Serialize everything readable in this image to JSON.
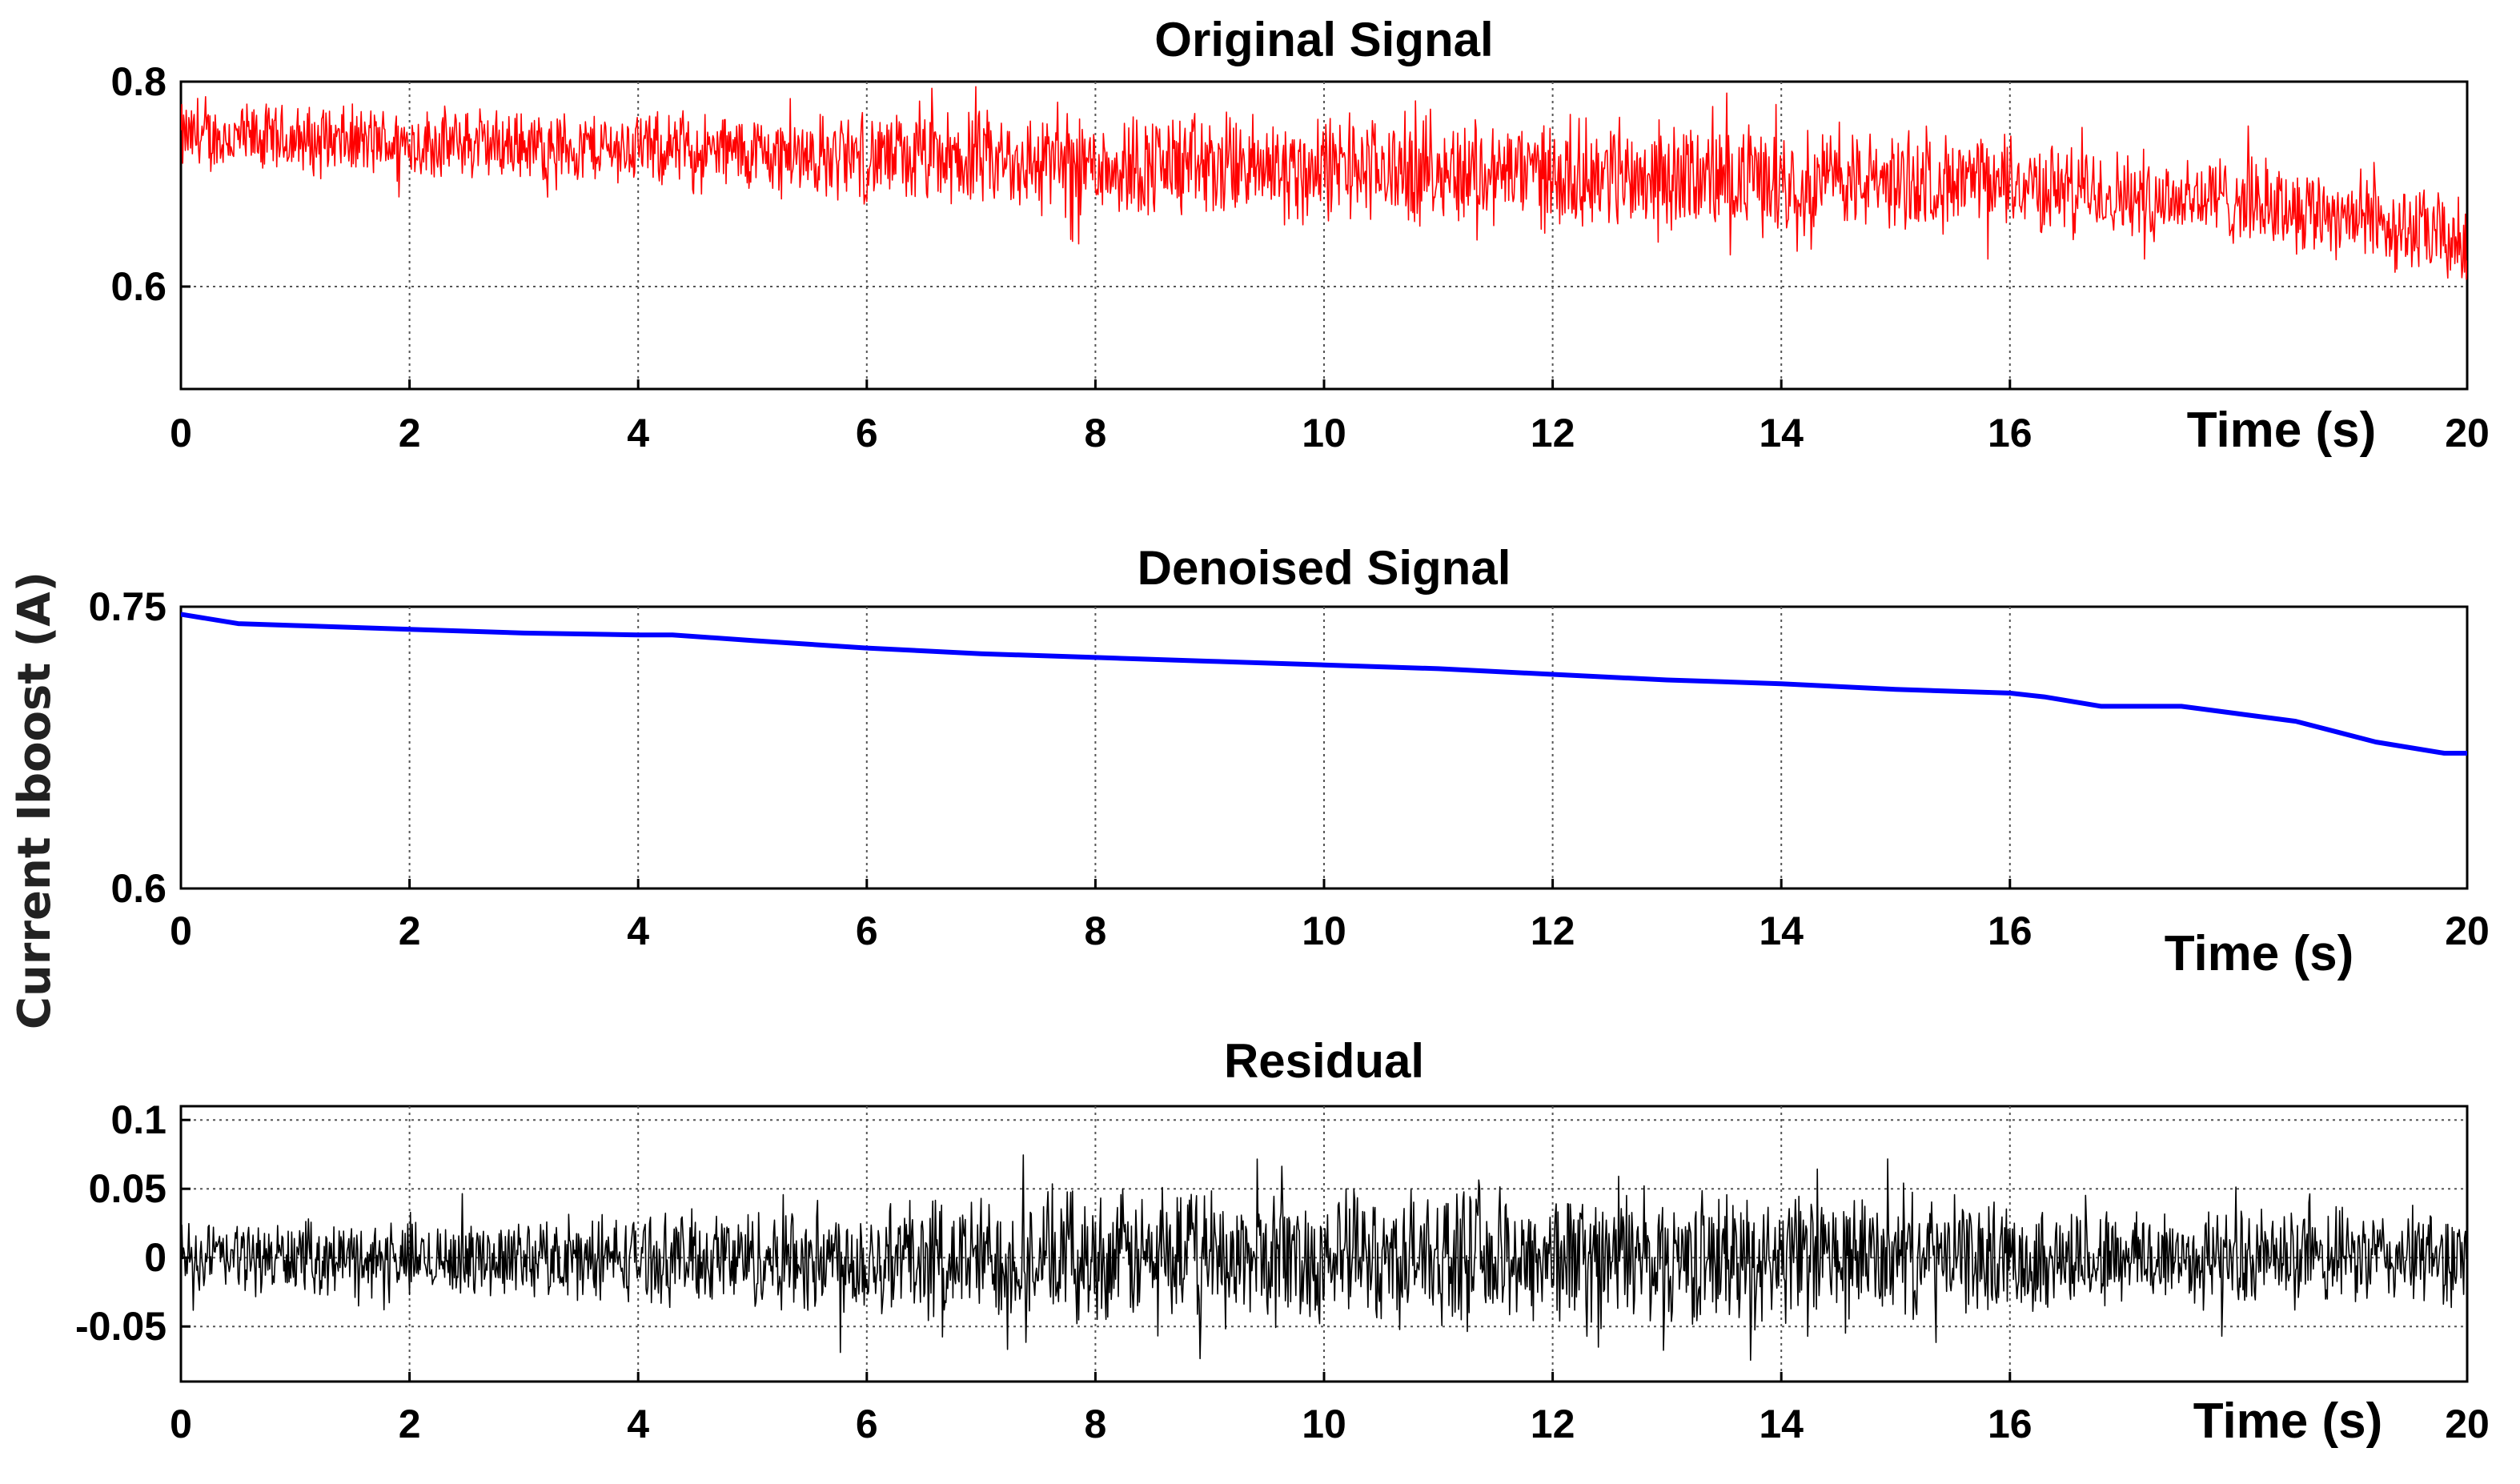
{
  "ylabel": "Current Iboost (A)",
  "chart_data": [
    {
      "type": "line",
      "title": "Original Signal",
      "xlabel": "Time (s)",
      "xlim": [
        0,
        20
      ],
      "ylim": [
        0.5,
        0.8
      ],
      "x_ticks": [
        0,
        2,
        4,
        6,
        8,
        10,
        12,
        14,
        16,
        20
      ],
      "y_ticks": [
        "0.6",
        "0.8"
      ],
      "grid": true,
      "noisy": true,
      "series": [
        {
          "color": "#ff0000",
          "x": [
            0,
            2,
            4,
            6,
            8,
            10,
            12,
            14,
            16,
            17,
            18,
            19,
            20
          ],
          "y": [
            0.745,
            0.74,
            0.735,
            0.725,
            0.72,
            0.715,
            0.71,
            0.705,
            0.7,
            0.69,
            0.685,
            0.67,
            0.64
          ],
          "noise_amplitude": [
            0.04,
            0.04,
            0.04,
            0.05,
            0.06,
            0.06,
            0.06,
            0.06,
            0.05,
            0.05,
            0.05,
            0.05,
            0.05
          ]
        }
      ]
    },
    {
      "type": "line",
      "title": "Denoised Signal",
      "xlabel": "Time (s)",
      "xlim": [
        0,
        20
      ],
      "ylim": [
        0.6,
        0.75
      ],
      "x_ticks": [
        0,
        2,
        4,
        6,
        8,
        10,
        12,
        14,
        16,
        20
      ],
      "y_ticks": [
        "0.6",
        "0.75"
      ],
      "grid": true,
      "noisy": false,
      "series": [
        {
          "color": "#0000ff",
          "x": [
            0,
            0.5,
            1,
            2,
            3,
            4,
            4.3,
            5,
            6,
            7,
            8,
            9,
            10,
            11,
            12,
            13,
            14,
            15,
            16,
            16.3,
            16.8,
            17.5,
            18.5,
            19.2,
            19.8,
            20
          ],
          "y": [
            0.746,
            0.741,
            0.74,
            0.738,
            0.736,
            0.735,
            0.735,
            0.732,
            0.728,
            0.725,
            0.723,
            0.721,
            0.719,
            0.717,
            0.714,
            0.711,
            0.709,
            0.706,
            0.704,
            0.702,
            0.697,
            0.697,
            0.689,
            0.678,
            0.672,
            0.672
          ]
        }
      ]
    },
    {
      "type": "line",
      "title": "Residual",
      "xlabel": "Time (s)",
      "xlim": [
        0,
        20
      ],
      "ylim": [
        -0.09,
        0.11
      ],
      "x_ticks": [
        0,
        2,
        4,
        6,
        8,
        10,
        12,
        14,
        16,
        20
      ],
      "y_ticks": [
        "-0.05",
        "0",
        "0.05",
        "0.1"
      ],
      "grid": true,
      "noisy": true,
      "series": [
        {
          "color": "#000000",
          "x": [
            0,
            2,
            4,
            6,
            8,
            10,
            12,
            14,
            16,
            18,
            20
          ],
          "y": [
            0,
            0,
            0,
            0,
            0,
            0,
            0,
            0,
            0,
            0,
            0
          ],
          "noise_amplitude": [
            0.03,
            0.03,
            0.035,
            0.05,
            0.055,
            0.055,
            0.055,
            0.055,
            0.045,
            0.04,
            0.04
          ]
        }
      ]
    }
  ]
}
